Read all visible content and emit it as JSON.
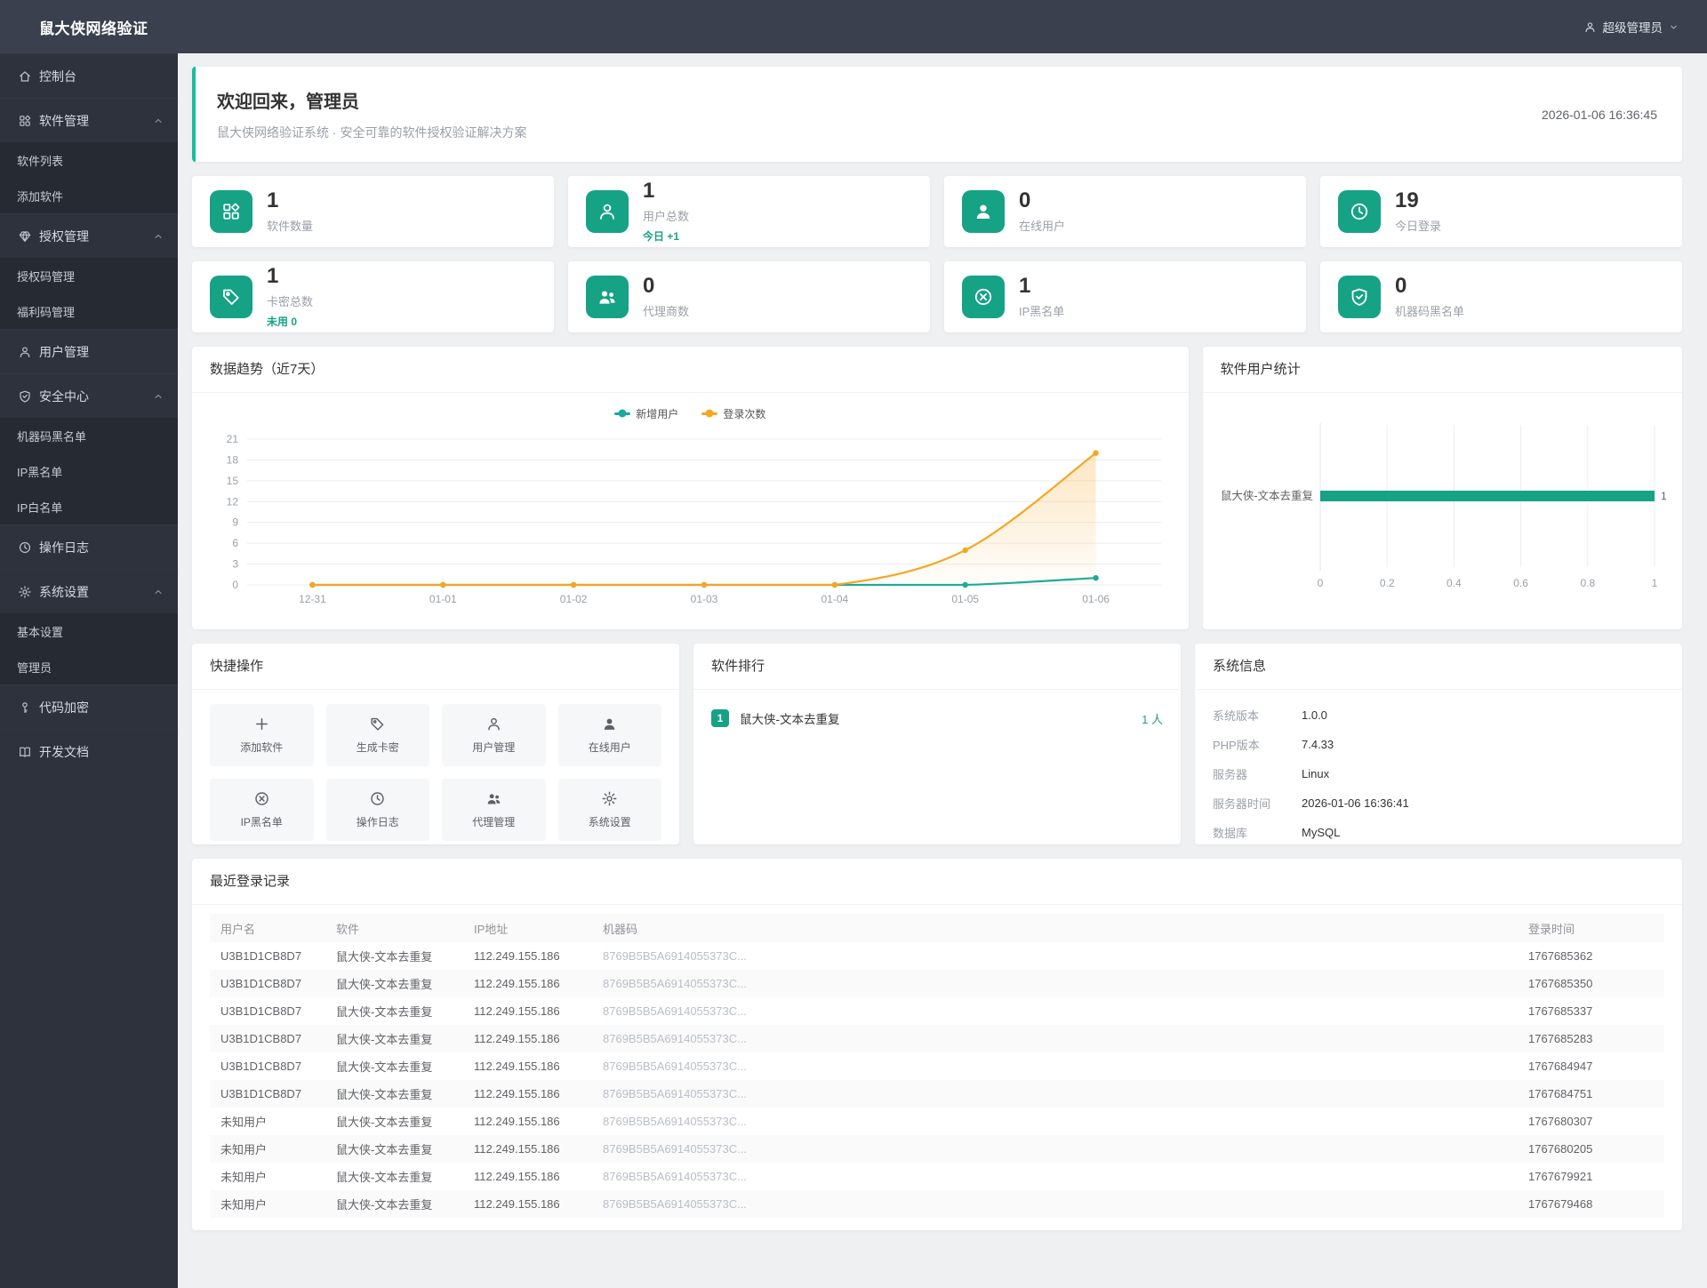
{
  "header": {
    "brand": "鼠大侠网络验证",
    "user": "超级管理员"
  },
  "sidebar": {
    "items": [
      {
        "cls": "item",
        "state": "active",
        "icon": "home",
        "label": "控制台"
      },
      {
        "cls": "item",
        "icon": "apps",
        "label": "软件管理",
        "expandable": true
      },
      {
        "cls": "sub",
        "label": "软件列表"
      },
      {
        "cls": "sub",
        "label": "添加软件"
      },
      {
        "cls": "item",
        "icon": "gem",
        "label": "授权管理",
        "expandable": true
      },
      {
        "cls": "sub",
        "label": "授权码管理"
      },
      {
        "cls": "sub",
        "label": "福利码管理"
      },
      {
        "cls": "item",
        "icon": "user",
        "label": "用户管理"
      },
      {
        "cls": "item",
        "icon": "shield",
        "label": "安全中心",
        "expandable": true
      },
      {
        "cls": "sub",
        "label": "机器码黑名单"
      },
      {
        "cls": "sub",
        "label": "IP黑名单"
      },
      {
        "cls": "sub",
        "label": "IP白名单"
      },
      {
        "cls": "item",
        "icon": "clock",
        "label": "操作日志"
      },
      {
        "cls": "item",
        "icon": "gear",
        "label": "系统设置",
        "expandable": true
      },
      {
        "cls": "sub",
        "label": "基本设置"
      },
      {
        "cls": "sub",
        "label": "管理员"
      },
      {
        "cls": "item",
        "icon": "key",
        "label": "代码加密"
      },
      {
        "cls": "item",
        "icon": "book",
        "label": "开发文档"
      }
    ]
  },
  "welcome": {
    "title": "欢迎回来，管理员",
    "subtitle": "鼠大侠网络验证系统 · 安全可靠的软件授权验证解决方案",
    "timestamp": "2026-01-06 16:36:45"
  },
  "stats": [
    {
      "value": "1",
      "label": "软件数量",
      "icon": "apps"
    },
    {
      "value": "1",
      "label": "用户总数",
      "icon": "user",
      "extra": "今日 +1"
    },
    {
      "value": "0",
      "label": "在线用户",
      "icon": "bust"
    },
    {
      "value": "19",
      "label": "今日登录",
      "icon": "clock"
    },
    {
      "value": "1",
      "label": "卡密总数",
      "icon": "tag",
      "extra": "未用 0"
    },
    {
      "value": "0",
      "label": "代理商数",
      "icon": "people"
    },
    {
      "value": "1",
      "label": "IP黑名单",
      "icon": "ban"
    },
    {
      "value": "0",
      "label": "机器码黑名单",
      "icon": "shield"
    }
  ],
  "chart_data": [
    {
      "type": "line",
      "title": "数据趋势（近7天）",
      "x": [
        "12-31",
        "01-01",
        "01-02",
        "01-03",
        "01-04",
        "01-05",
        "01-06"
      ],
      "series": [
        {
          "name": "新增用户",
          "color": "#1aab9b",
          "values": [
            0,
            0,
            0,
            0,
            0,
            0,
            1
          ]
        },
        {
          "name": "登录次数",
          "color": "#f5a623",
          "values": [
            0,
            0,
            0,
            0,
            0,
            5,
            19
          ],
          "area": true
        }
      ],
      "ylim": [
        0,
        21
      ],
      "ytick": 3,
      "grid": true,
      "legend_position": "top"
    },
    {
      "type": "bar",
      "title": "软件用户统计",
      "orientation": "horizontal",
      "categories": [
        "鼠大侠-文本去重复"
      ],
      "values": [
        1
      ],
      "xlim": [
        0,
        1
      ],
      "xticks": [
        0,
        0.2,
        0.4,
        0.6,
        0.8,
        1
      ],
      "color": "#16a285"
    }
  ],
  "quick_actions": {
    "title": "快捷操作",
    "items": [
      {
        "label": "添加软件",
        "icon": "plus"
      },
      {
        "label": "生成卡密",
        "icon": "tag"
      },
      {
        "label": "用户管理",
        "icon": "user"
      },
      {
        "label": "在线用户",
        "icon": "bust"
      },
      {
        "label": "IP黑名单",
        "icon": "ban"
      },
      {
        "label": "操作日志",
        "icon": "clock"
      },
      {
        "label": "代理管理",
        "icon": "people"
      },
      {
        "label": "系统设置",
        "icon": "gear"
      }
    ]
  },
  "ranking": {
    "title": "软件排行",
    "items": [
      {
        "rank": "1",
        "name": "鼠大侠-文本去重复",
        "count": "1 人"
      }
    ]
  },
  "system_info": {
    "title": "系统信息",
    "rows": [
      {
        "label": "系统版本",
        "value": "1.0.0"
      },
      {
        "label": "PHP版本",
        "value": "7.4.33"
      },
      {
        "label": "服务器",
        "value": "Linux"
      },
      {
        "label": "服务器时间",
        "value": "2026-01-06 16:36:41"
      },
      {
        "label": "数据库",
        "value": "MySQL"
      }
    ]
  },
  "recent_logins": {
    "title": "最近登录记录",
    "columns": [
      "用户名",
      "软件",
      "IP地址",
      "机器码",
      "登录时间"
    ],
    "rows": [
      [
        "U3B1D1CB8D7",
        "鼠大侠-文本去重复",
        "112.249.155.186",
        "8769B5B5A6914055373C...",
        "1767685362"
      ],
      [
        "U3B1D1CB8D7",
        "鼠大侠-文本去重复",
        "112.249.155.186",
        "8769B5B5A6914055373C...",
        "1767685350"
      ],
      [
        "U3B1D1CB8D7",
        "鼠大侠-文本去重复",
        "112.249.155.186",
        "8769B5B5A6914055373C...",
        "1767685337"
      ],
      [
        "U3B1D1CB8D7",
        "鼠大侠-文本去重复",
        "112.249.155.186",
        "8769B5B5A6914055373C...",
        "1767685283"
      ],
      [
        "U3B1D1CB8D7",
        "鼠大侠-文本去重复",
        "112.249.155.186",
        "8769B5B5A6914055373C...",
        "1767684947"
      ],
      [
        "U3B1D1CB8D7",
        "鼠大侠-文本去重复",
        "112.249.155.186",
        "8769B5B5A6914055373C...",
        "1767684751"
      ],
      [
        "未知用户",
        "鼠大侠-文本去重复",
        "112.249.155.186",
        "8769B5B5A6914055373C...",
        "1767680307"
      ],
      [
        "未知用户",
        "鼠大侠-文本去重复",
        "112.249.155.186",
        "8769B5B5A6914055373C...",
        "1767680205"
      ],
      [
        "未知用户",
        "鼠大侠-文本去重复",
        "112.249.155.186",
        "8769B5B5A6914055373C...",
        "1767679921"
      ],
      [
        "未知用户",
        "鼠大侠-文本去重复",
        "112.249.155.186",
        "8769B5B5A6914055373C...",
        "1767679468"
      ]
    ]
  }
}
